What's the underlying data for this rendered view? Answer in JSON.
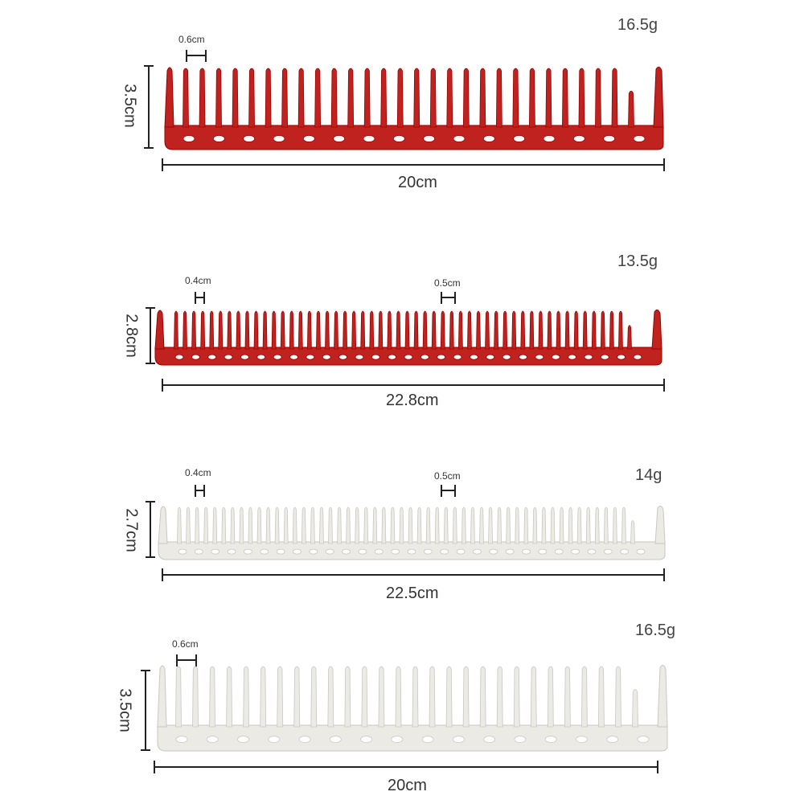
{
  "combs": [
    {
      "color": "#c0221f",
      "weight": "16.5g",
      "height": "3.5cm",
      "length": "20cm",
      "gaps": [
        "0.6cm"
      ]
    },
    {
      "color": "#c0221f",
      "weight": "13.5g",
      "height": "2.8cm",
      "length": "22.8cm",
      "gaps": [
        "0.4cm",
        "0.5cm"
      ]
    },
    {
      "color": "#eceae4",
      "weight": "14g",
      "height": "2.7cm",
      "length": "22.5cm",
      "gaps": [
        "0.4cm",
        "0.5cm"
      ]
    },
    {
      "color": "#eceae4",
      "weight": "16.5g",
      "height": "3.5cm",
      "length": "20cm",
      "gaps": [
        "0.6cm"
      ]
    }
  ]
}
